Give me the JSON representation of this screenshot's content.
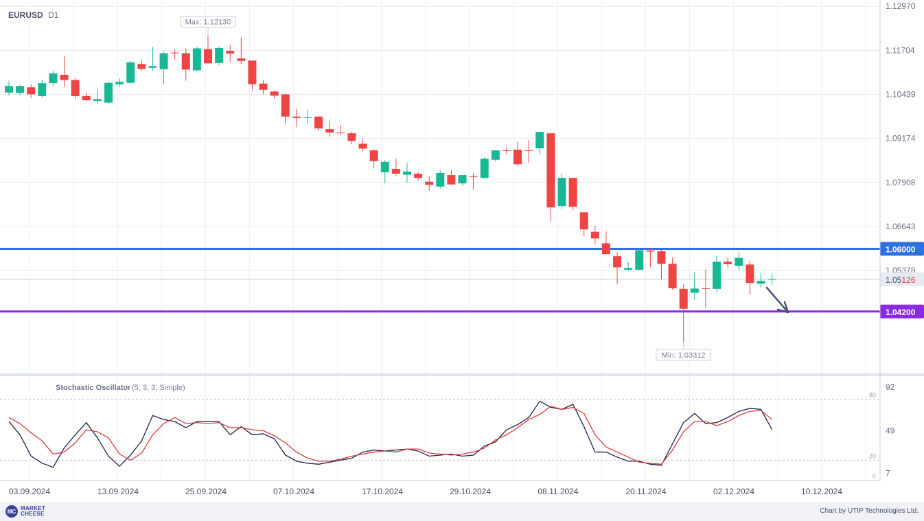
{
  "header": {
    "symbol": "EURUSD",
    "timeframe": "D1"
  },
  "price_axis": {
    "ticks": [
      "1.12970",
      "1.11704",
      "1.10439",
      "1.09174",
      "1.07908",
      "1.06643",
      "1.05378"
    ]
  },
  "levels": {
    "upper": {
      "label": "1.06000",
      "value": 1.06,
      "color": "#2f6fe0"
    },
    "lower": {
      "label": "1.04200",
      "value": 1.042,
      "color": "#8a2be2"
    },
    "current": {
      "prefix": "1.05",
      "suffix": "126",
      "value": 1.05126
    }
  },
  "annotations": {
    "max_label": "Max: 1.12130",
    "min_label": "Min: 1.03312"
  },
  "date_axis": {
    "labels": [
      "03.09.2024",
      "13.09.2024",
      "25.09.2024",
      "07.10.2024",
      "17.10.2024",
      "29.10.2024",
      "08.11.2024",
      "20.11.2024",
      "02.12.2024",
      "10.12.2024"
    ]
  },
  "oscillator": {
    "title": "Stochastic Oscillator",
    "params": "(5, 3, 3, Simple)",
    "axis_ticks": [
      "92",
      "49",
      "7"
    ],
    "level_labels": [
      "80",
      "20",
      "0"
    ],
    "k_color": "#1a1f4f",
    "d_color": "#e03a3a"
  },
  "footer": {
    "logo_badge": "MC",
    "logo_line1": "MARKET",
    "logo_line2": "CHEESE",
    "credit": "Chart by UTIP Technologies Ltd."
  },
  "colors": {
    "bull": "#18b894",
    "bear": "#ee4444",
    "accent": "#2f6fe0"
  },
  "chart_data": [
    {
      "type": "candlestick",
      "title": "EURUSD D1",
      "ylim": [
        1.025,
        1.1315
      ],
      "yticks": [
        1.1297,
        1.11704,
        1.10439,
        1.09174,
        1.07908,
        1.06643,
        1.05378
      ],
      "x_labels": [
        "03.09.2024",
        "13.09.2024",
        "25.09.2024",
        "07.10.2024",
        "17.10.2024",
        "29.10.2024",
        "08.11.2024",
        "20.11.2024",
        "02.12.2024",
        "10.12.2024"
      ],
      "horizontal_lines": [
        1.06,
        1.042
      ],
      "max": 1.1213,
      "min": 1.03312,
      "last": 1.05126,
      "grid": true,
      "candles": [
        {
          "o": 1.1049,
          "h": 1.1083,
          "l": 1.1041,
          "c": 1.1068
        },
        {
          "o": 1.1048,
          "h": 1.1072,
          "l": 1.1041,
          "c": 1.1068
        },
        {
          "o": 1.1064,
          "h": 1.1073,
          "l": 1.1034,
          "c": 1.1044
        },
        {
          "o": 1.1039,
          "h": 1.1086,
          "l": 1.1035,
          "c": 1.1076
        },
        {
          "o": 1.1076,
          "h": 1.1111,
          "l": 1.1067,
          "c": 1.1104
        },
        {
          "o": 1.11,
          "h": 1.1155,
          "l": 1.1065,
          "c": 1.1085
        },
        {
          "o": 1.1085,
          "h": 1.109,
          "l": 1.1032,
          "c": 1.1039
        },
        {
          "o": 1.1039,
          "h": 1.1048,
          "l": 1.1025,
          "c": 1.1027
        },
        {
          "o": 1.1025,
          "h": 1.1059,
          "l": 1.1016,
          "c": 1.103
        },
        {
          "o": 1.102,
          "h": 1.108,
          "l": 1.1015,
          "c": 1.1077
        },
        {
          "o": 1.1073,
          "h": 1.109,
          "l": 1.1065,
          "c": 1.108
        },
        {
          "o": 1.1077,
          "h": 1.114,
          "l": 1.1075,
          "c": 1.1136
        },
        {
          "o": 1.1131,
          "h": 1.1142,
          "l": 1.1112,
          "c": 1.1117
        },
        {
          "o": 1.112,
          "h": 1.118,
          "l": 1.1111,
          "c": 1.1125
        },
        {
          "o": 1.1116,
          "h": 1.1167,
          "l": 1.1073,
          "c": 1.1162
        },
        {
          "o": 1.1164,
          "h": 1.1172,
          "l": 1.1144,
          "c": 1.1163
        },
        {
          "o": 1.1162,
          "h": 1.1176,
          "l": 1.1083,
          "c": 1.1115
        },
        {
          "o": 1.1113,
          "h": 1.118,
          "l": 1.1111,
          "c": 1.1176
        },
        {
          "o": 1.1174,
          "h": 1.1213,
          "l": 1.1132,
          "c": 1.1133
        },
        {
          "o": 1.1134,
          "h": 1.1182,
          "l": 1.1128,
          "c": 1.1177
        },
        {
          "o": 1.1169,
          "h": 1.1186,
          "l": 1.1137,
          "c": 1.1161
        },
        {
          "o": 1.1147,
          "h": 1.1208,
          "l": 1.1131,
          "c": 1.114
        },
        {
          "o": 1.1141,
          "h": 1.1142,
          "l": 1.1055,
          "c": 1.1073
        },
        {
          "o": 1.1075,
          "h": 1.1085,
          "l": 1.1044,
          "c": 1.1057
        },
        {
          "o": 1.1052,
          "h": 1.1056,
          "l": 1.1032,
          "c": 1.104
        },
        {
          "o": 1.1044,
          "h": 1.1046,
          "l": 1.096,
          "c": 1.098
        },
        {
          "o": 1.098,
          "h": 1.1002,
          "l": 1.095,
          "c": 1.0976
        },
        {
          "o": 1.0976,
          "h": 1.0999,
          "l": 1.0958,
          "c": 1.0978
        },
        {
          "o": 1.098,
          "h": 1.0981,
          "l": 1.0939,
          "c": 1.0946
        },
        {
          "o": 1.0944,
          "h": 1.0966,
          "l": 1.0922,
          "c": 1.0934
        },
        {
          "o": 1.0934,
          "h": 1.0956,
          "l": 1.0928,
          "c": 1.0932
        },
        {
          "o": 1.0932,
          "h": 1.0937,
          "l": 1.09,
          "c": 1.091
        },
        {
          "o": 1.0902,
          "h": 1.0916,
          "l": 1.088,
          "c": 1.0888
        },
        {
          "o": 1.0883,
          "h": 1.0885,
          "l": 1.0831,
          "c": 1.0852
        },
        {
          "o": 1.082,
          "h": 1.0855,
          "l": 1.0788,
          "c": 1.085
        },
        {
          "o": 1.083,
          "h": 1.086,
          "l": 1.0809,
          "c": 1.0816
        },
        {
          "o": 1.0813,
          "h": 1.0847,
          "l": 1.079,
          "c": 1.0822
        },
        {
          "o": 1.0816,
          "h": 1.0821,
          "l": 1.0796,
          "c": 1.0804
        },
        {
          "o": 1.0793,
          "h": 1.0808,
          "l": 1.0767,
          "c": 1.0784
        },
        {
          "o": 1.0779,
          "h": 1.0825,
          "l": 1.0773,
          "c": 1.0818
        },
        {
          "o": 1.0812,
          "h": 1.0826,
          "l": 1.0786,
          "c": 1.0785
        },
        {
          "o": 1.0788,
          "h": 1.0812,
          "l": 1.0783,
          "c": 1.0812
        },
        {
          "o": 1.0808,
          "h": 1.0819,
          "l": 1.077,
          "c": 1.0806
        },
        {
          "o": 1.0804,
          "h": 1.0863,
          "l": 1.0802,
          "c": 1.0859
        },
        {
          "o": 1.0856,
          "h": 1.0883,
          "l": 1.0851,
          "c": 1.0883
        },
        {
          "o": 1.0883,
          "h": 1.0894,
          "l": 1.0873,
          "c": 1.0882
        },
        {
          "o": 1.0885,
          "h": 1.0908,
          "l": 1.0838,
          "c": 1.0843
        },
        {
          "o": 1.0883,
          "h": 1.0912,
          "l": 1.0848,
          "c": 1.0882
        },
        {
          "o": 1.0889,
          "h": 1.0937,
          "l": 1.0873,
          "c": 1.0936
        },
        {
          "o": 1.0932,
          "h": 1.0933,
          "l": 1.0679,
          "c": 1.0719
        },
        {
          "o": 1.0723,
          "h": 1.0815,
          "l": 1.0715,
          "c": 1.0804
        },
        {
          "o": 1.0804,
          "h": 1.0804,
          "l": 1.0711,
          "c": 1.0721
        },
        {
          "o": 1.0705,
          "h": 1.0706,
          "l": 1.0637,
          "c": 1.0656
        },
        {
          "o": 1.0649,
          "h": 1.0667,
          "l": 1.0613,
          "c": 1.063
        },
        {
          "o": 1.0616,
          "h": 1.0651,
          "l": 1.0592,
          "c": 1.0585
        },
        {
          "o": 1.0579,
          "h": 1.0591,
          "l": 1.0498,
          "c": 1.0547
        },
        {
          "o": 1.054,
          "h": 1.0562,
          "l": 1.0537,
          "c": 1.0545
        },
        {
          "o": 1.054,
          "h": 1.0601,
          "l": 1.0539,
          "c": 1.0596
        },
        {
          "o": 1.0595,
          "h": 1.0603,
          "l": 1.0548,
          "c": 1.0592
        },
        {
          "o": 1.0593,
          "h": 1.0603,
          "l": 1.0512,
          "c": 1.0557
        },
        {
          "o": 1.0557,
          "h": 1.0575,
          "l": 1.0482,
          "c": 1.0487
        },
        {
          "o": 1.0485,
          "h": 1.0498,
          "l": 1.0331,
          "c": 1.0428
        },
        {
          "o": 1.0474,
          "h": 1.0532,
          "l": 1.0454,
          "c": 1.0486
        },
        {
          "o": 1.0487,
          "h": 1.054,
          "l": 1.043,
          "c": 1.0485
        },
        {
          "o": 1.0485,
          "h": 1.0581,
          "l": 1.0476,
          "c": 1.0563
        },
        {
          "o": 1.0563,
          "h": 1.0575,
          "l": 1.0545,
          "c": 1.0556
        },
        {
          "o": 1.0551,
          "h": 1.059,
          "l": 1.0538,
          "c": 1.0574
        },
        {
          "o": 1.0555,
          "h": 1.0566,
          "l": 1.0468,
          "c": 1.0502
        },
        {
          "o": 1.05,
          "h": 1.0531,
          "l": 1.0487,
          "c": 1.0508
        },
        {
          "o": 1.0512,
          "h": 1.0529,
          "l": 1.0496,
          "c": 1.0513
        }
      ]
    },
    {
      "type": "line",
      "title": "Stochastic Oscillator (5, 3, 3, Simple)",
      "ylim": [
        0,
        100
      ],
      "yticks": [
        92,
        49,
        7
      ],
      "levels": [
        80,
        20
      ],
      "series": [
        {
          "values": [
            58,
            45,
            24,
            17,
            13,
            32,
            45,
            57,
            42,
            24,
            14,
            25,
            39,
            64,
            60,
            58,
            52,
            58,
            58,
            58,
            45,
            53,
            45,
            46,
            41,
            25,
            19,
            17,
            16,
            18,
            20,
            22,
            28,
            30,
            29,
            30,
            31,
            29,
            24,
            25,
            26,
            24,
            25,
            34,
            38,
            50,
            55,
            62,
            78,
            72,
            70,
            75,
            53,
            28,
            28,
            23,
            19,
            19,
            16,
            15,
            36,
            57,
            66,
            56,
            57,
            62,
            68,
            71,
            70,
            50
          ]
        },
        {
          "values": [
            62,
            56,
            47,
            39,
            26,
            28,
            37,
            50,
            48,
            42,
            26,
            20,
            27,
            45,
            56,
            62,
            56,
            57,
            56,
            57,
            52,
            52,
            50,
            49,
            44,
            37,
            28,
            22,
            19,
            19,
            21,
            24,
            26,
            28,
            29,
            28,
            31,
            31,
            27,
            26,
            25,
            26,
            28,
            32,
            40,
            45,
            52,
            60,
            65,
            73,
            70,
            72,
            66,
            45,
            33,
            28,
            23,
            18,
            17,
            16,
            30,
            48,
            58,
            58,
            54,
            58,
            64,
            68,
            69,
            60
          ]
        }
      ]
    }
  ]
}
